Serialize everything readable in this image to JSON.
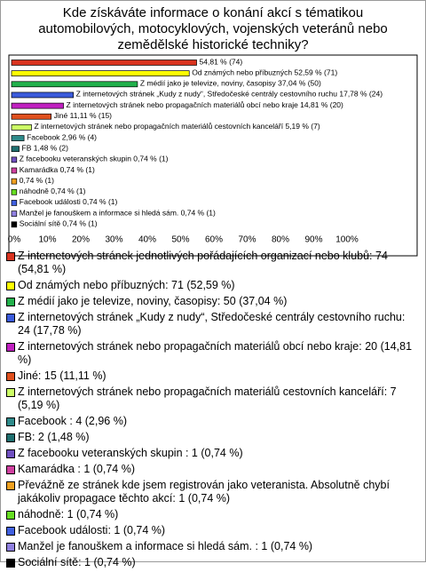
{
  "chart_data": {
    "type": "bar",
    "orientation": "horizontal",
    "title": "Kde získáváte informace o konání akcí s tématikou automobilových, motocyklových, vojenských veteránů nebo zemědělské historické techniky?",
    "categories": [
      "Z internetových stránek jednotlivých pořádajících organizací nebo klubů: 74 (54,81 %)",
      "Od známých nebo příbuzných: 71 (52,59 %)",
      "Z médií jako je televize, noviny, časopisy: 50 (37,04 %)",
      "Z internetových stránek „Kudy z nudy“, Středočeské centrály cestovního ruchu: 24 (17,78 %)",
      "Z internetových stránek nebo propagačních materiálů obcí nebo kraje: 20 (14,81 %)",
      "Jiné: 15 (11,11 %)",
      "Z internetových stránek nebo propagačních materiálů cestovních kanceláří: 7 (5,19 %)",
      "Facebook : 4 (2,96 %)",
      "FB: 2 (1,48 %)",
      "Z facebooku veteranských skupin : 1 (0,74 %)",
      "Kamarádka : 1 (0,74 %)",
      "Převážně ze stránek kde jsem registrován jako veteranista. Absolutně chybí jakákoliv propagace těchto akcí: 1 (0,74 %)",
      "náhodně: 1 (0,74 %)",
      "Facebook události: 1 (0,74 %)",
      "Manžel je fanouškem a informace si hledá sám. : 1 (0,74 %)",
      "Sociální sítě: 1 (0,74 %)"
    ],
    "values": [
      54.81,
      52.59,
      37.04,
      17.78,
      14.81,
      11.11,
      5.19,
      2.96,
      1.48,
      0.74,
      0.74,
      0.74,
      0.74,
      0.74,
      0.74,
      0.74
    ],
    "value_labels": [
      "54,81 % (74)",
      "Od známých nebo příbuzných 52,59 % (71)",
      "Z médií jako je televize, noviny, časopisy 37,04 % (50)",
      "Z internetových stránek „Kudy z nudy“, Středočeské centrály cestovního ruchu 17,78 % (24)",
      "Z internetových stránek nebo propagačních materiálů obcí nebo kraje 14,81 % (20)",
      "Jiné 11,11 % (15)",
      "Z internetových stránek nebo propagačních materiálů cestovních kanceláří 5,19 % (7)",
      "Facebook 2,96 % (4)",
      "FB 1,48 % (2)",
      "Z facebooku veteranských skupin 0,74 % (1)",
      "Kamarádka 0,74 % (1)",
      "0,74 % (1)",
      "náhodně 0,74 % (1)",
      "Facebook události 0,74 % (1)",
      "Manžel je fanouškem a informace si hledá sám. 0,74 % (1)",
      "Sociální sítě 0,74 % (1)"
    ],
    "colors": [
      "#d9331f",
      "#ffff00",
      "#22b14c",
      "#3b5bdb",
      "#c020c0",
      "#e0501e",
      "#ccff66",
      "#2e8b8b",
      "#1f6f6f",
      "#7050c0",
      "#d040a0",
      "#f0a020",
      "#66dd22",
      "#4060e0",
      "#9080e0",
      "#000000"
    ],
    "xlim": [
      0,
      100
    ],
    "xticks": [
      {
        "value": 0,
        "label": "0%"
      },
      {
        "value": 10,
        "label": "10%"
      },
      {
        "value": 20,
        "label": "20%"
      },
      {
        "value": 30,
        "label": "30%"
      },
      {
        "value": 40,
        "label": "40%"
      },
      {
        "value": 50,
        "label": "50%"
      },
      {
        "value": 60,
        "label": "60%"
      },
      {
        "value": 70,
        "label": "70%"
      },
      {
        "value": 80,
        "label": "80%"
      },
      {
        "value": 90,
        "label": "90%"
      },
      {
        "value": 100,
        "label": "100%"
      }
    ]
  }
}
